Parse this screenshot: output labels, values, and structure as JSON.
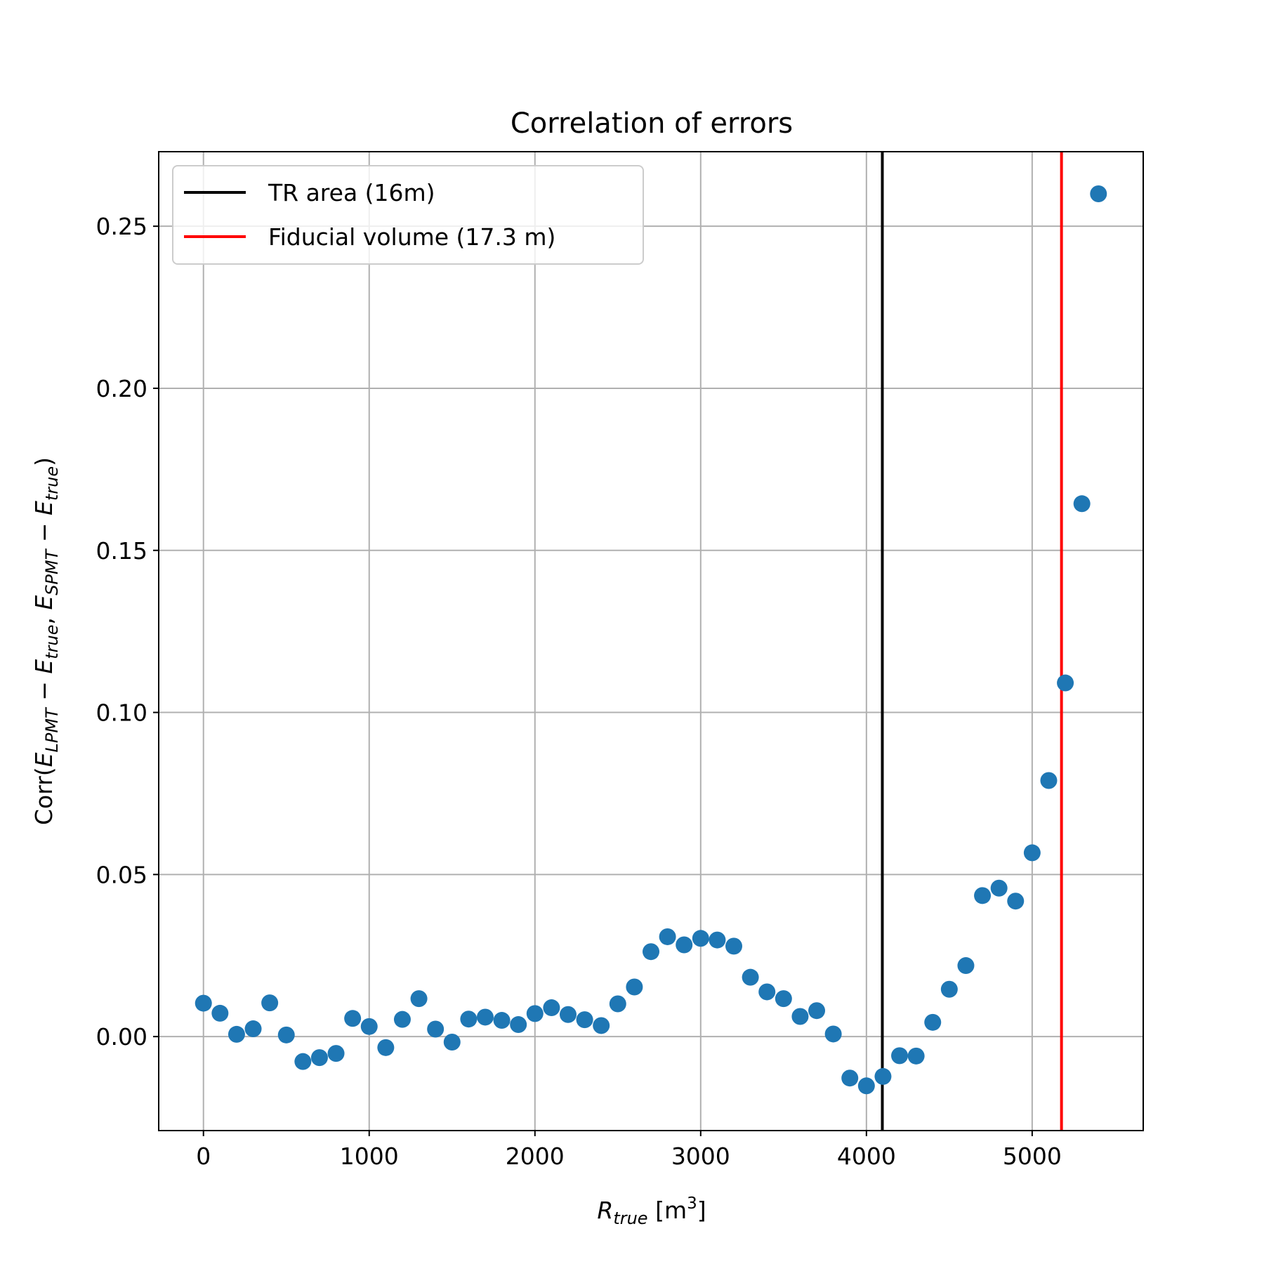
{
  "chart_data": {
    "type": "scatter",
    "title": "Correlation of errors",
    "xlabel": {
      "main": "R",
      "sub": "true",
      "unit_open": " [m",
      "unit_sup": "3",
      "unit_close": "]"
    },
    "ylabel": {
      "p1": "Corr(",
      "e1": "E",
      "s1": "LPMT",
      "m1": " − ",
      "e2": "E",
      "s2": "true",
      "c1": ", ",
      "e3": "E",
      "s3": "SPMT",
      "m2": " − ",
      "e4": "E",
      "s4": "true",
      "p2": ")"
    },
    "xlim": [
      -270,
      5670
    ],
    "ylim": [
      -0.029,
      0.273
    ],
    "xticks": [
      0,
      1000,
      2000,
      3000,
      4000,
      5000
    ],
    "xtick_labels": [
      "0",
      "1000",
      "2000",
      "3000",
      "4000",
      "5000"
    ],
    "yticks": [
      0.0,
      0.05,
      0.1,
      0.15,
      0.2,
      0.25
    ],
    "ytick_labels": [
      "0.00",
      "0.05",
      "0.10",
      "0.15",
      "0.20",
      "0.25"
    ],
    "grid": true,
    "legend_position": "top-left",
    "series": [
      {
        "marker_color": "#1f77b4",
        "x": [
          0,
          100,
          200,
          300,
          400,
          500,
          600,
          700,
          800,
          900,
          1000,
          1100,
          1200,
          1300,
          1400,
          1500,
          1600,
          1700,
          1800,
          1900,
          2000,
          2100,
          2200,
          2300,
          2400,
          2500,
          2600,
          2700,
          2800,
          2900,
          3000,
          3100,
          3200,
          3300,
          3400,
          3500,
          3600,
          3700,
          3800,
          3900,
          4000,
          4100,
          4200,
          4300,
          4400,
          4500,
          4600,
          4700,
          4800,
          4900,
          5000,
          5100,
          5200,
          5300,
          5400
        ],
        "y": [
          0.0103,
          0.0072,
          0.0007,
          0.0024,
          0.0104,
          0.0005,
          -0.0077,
          -0.0065,
          -0.0052,
          0.0056,
          0.0031,
          -0.0034,
          0.0053,
          0.0117,
          0.0023,
          -0.0017,
          0.0054,
          0.006,
          0.005,
          0.0037,
          0.0071,
          0.0089,
          0.0068,
          0.0052,
          0.0034,
          0.0101,
          0.0153,
          0.0262,
          0.0308,
          0.0283,
          0.0303,
          0.0298,
          0.0279,
          0.0183,
          0.0138,
          0.0117,
          0.0062,
          0.008,
          0.0008,
          -0.0128,
          -0.0152,
          -0.0123,
          -0.0059,
          -0.006,
          0.0044,
          0.0146,
          0.0219,
          0.0435,
          0.0458,
          0.0418,
          0.0567,
          0.079,
          0.1091,
          0.1644,
          0.26
        ]
      }
    ],
    "vlines": [
      {
        "label": "TR area (16m)",
        "x": 4096,
        "color": "#000000"
      },
      {
        "label": "Fiducial volume (17.3 m)",
        "x": 5177,
        "color": "#ff0000"
      }
    ]
  }
}
